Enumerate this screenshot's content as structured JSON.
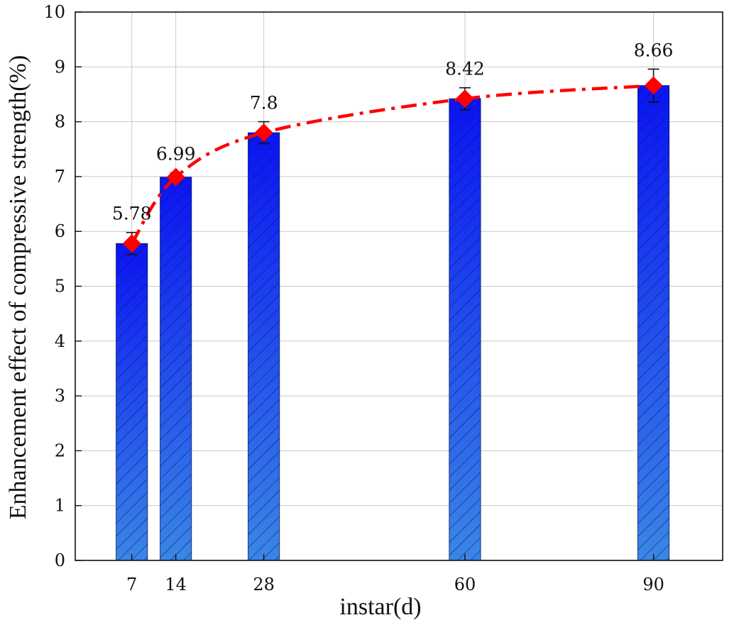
{
  "chart_data": {
    "type": "bar",
    "title": "",
    "xlabel": "instar(d)",
    "ylabel": "Enhancement effect of compressive strength(%)",
    "x": [
      7,
      14,
      28,
      60,
      90
    ],
    "x_tick_labels": [
      "7",
      "14",
      "28",
      "60",
      "90"
    ],
    "xlim": [
      -2,
      101
    ],
    "ylim": [
      0,
      10
    ],
    "y_ticks": [
      0,
      1,
      2,
      3,
      4,
      5,
      6,
      7,
      8,
      9,
      10
    ],
    "y_tick_labels": [
      "0",
      "1",
      "2",
      "3",
      "4",
      "5",
      "6",
      "7",
      "8",
      "9",
      "10"
    ],
    "grid": true,
    "bar_width_data_units": 5,
    "series": [
      {
        "name": "bars",
        "type": "bar",
        "values": [
          5.78,
          6.99,
          7.8,
          8.42,
          8.66
        ],
        "error": [
          0.2,
          0.08,
          0.2,
          0.2,
          0.3
        ],
        "fill_top": "#0a14f5",
        "fill_bottom": "#3a86e6",
        "hatch": "diagonal"
      },
      {
        "name": "trend",
        "type": "line",
        "values": [
          5.78,
          6.99,
          7.8,
          8.42,
          8.66
        ],
        "color": "#ff0000",
        "line_style": "dash-dot",
        "marker": "diamond"
      }
    ],
    "data_labels": [
      "5.78",
      "6.99",
      "7.8",
      "8.42",
      "8.66"
    ]
  }
}
